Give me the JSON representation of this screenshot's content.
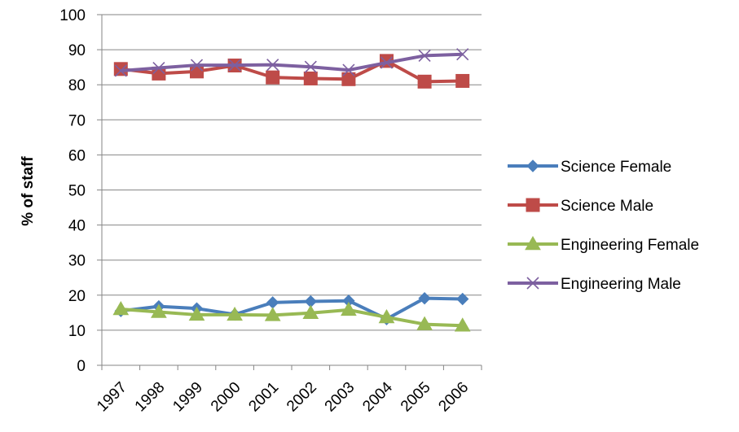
{
  "chart_data": {
    "type": "line",
    "title": "",
    "xlabel": "",
    "ylabel": "% of staff",
    "ylim": [
      0,
      100
    ],
    "yticks": [
      0,
      10,
      20,
      30,
      40,
      50,
      60,
      70,
      80,
      90,
      100
    ],
    "categories": [
      "1997",
      "1998",
      "1999",
      "2000",
      "2001",
      "2002",
      "2003",
      "2004",
      "2005",
      "2006"
    ],
    "grid": true,
    "legend_position": "right",
    "series": [
      {
        "name": "Science Female",
        "color": "#4a7ebb",
        "marker": "diamond",
        "values": [
          15.5,
          16.8,
          16.2,
          14.5,
          17.9,
          18.2,
          18.4,
          13.2,
          19.1,
          18.9
        ]
      },
      {
        "name": "Science Male",
        "color": "#be4b48",
        "marker": "square",
        "values": [
          84.5,
          83.2,
          83.8,
          85.5,
          82.1,
          81.8,
          81.6,
          86.8,
          80.9,
          81.1
        ]
      },
      {
        "name": "Engineering Female",
        "color": "#98b954",
        "marker": "triangle",
        "values": [
          16.0,
          15.2,
          14.4,
          14.4,
          14.3,
          14.9,
          15.8,
          13.7,
          11.7,
          11.3
        ]
      },
      {
        "name": "Engineering Male",
        "color": "#7d60a0",
        "marker": "x",
        "values": [
          84.0,
          84.8,
          85.6,
          85.6,
          85.7,
          85.1,
          84.2,
          86.3,
          88.3,
          88.7
        ]
      }
    ]
  }
}
